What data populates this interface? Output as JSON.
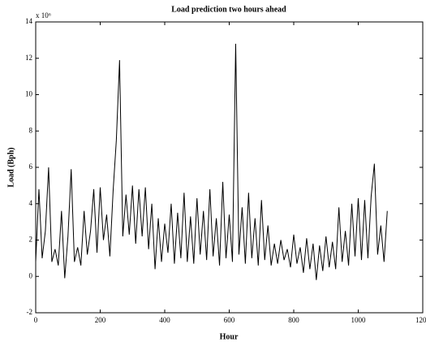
{
  "chart_data": {
    "type": "line",
    "title": "Load prediction two hours ahead",
    "xlabel": "Hour",
    "ylabel": "Load (Bph)",
    "y_multiplier": "x 10⁶",
    "xlim": [
      0,
      1200
    ],
    "xticks": [
      0,
      200,
      400,
      600,
      800,
      1000,
      1200
    ],
    "ylim": [
      -2,
      14
    ],
    "yticks": [
      -2,
      0,
      2,
      4,
      6,
      8,
      10,
      12,
      14
    ],
    "grid": false,
    "series": [
      {
        "color": "#000000",
        "x": [
          0,
          10,
          20,
          30,
          40,
          50,
          60,
          70,
          80,
          90,
          100,
          110,
          120,
          130,
          140,
          150,
          160,
          170,
          180,
          190,
          200,
          210,
          220,
          230,
          240,
          250,
          260,
          270,
          280,
          290,
          300,
          310,
          320,
          330,
          340,
          350,
          360,
          370,
          380,
          390,
          400,
          410,
          420,
          430,
          440,
          450,
          460,
          470,
          480,
          490,
          500,
          510,
          520,
          530,
          540,
          550,
          560,
          570,
          580,
          590,
          600,
          610,
          620,
          630,
          640,
          650,
          660,
          670,
          680,
          690,
          700,
          710,
          720,
          730,
          740,
          750,
          760,
          770,
          780,
          790,
          800,
          810,
          820,
          830,
          840,
          850,
          860,
          870,
          880,
          890,
          900,
          910,
          920,
          930,
          940,
          950,
          960,
          970,
          980,
          990,
          1000,
          1010,
          1020,
          1030,
          1040,
          1050,
          1060,
          1070,
          1080,
          1090
        ],
        "values": [
          0.8,
          4.8,
          1.0,
          2.5,
          6.0,
          0.8,
          1.5,
          0.6,
          3.6,
          -0.1,
          2.2,
          5.9,
          0.8,
          1.6,
          0.6,
          3.6,
          1.2,
          2.5,
          4.8,
          1.3,
          4.9,
          2.0,
          3.4,
          1.1,
          4.7,
          7.5,
          11.9,
          2.2,
          4.5,
          2.3,
          5.0,
          1.8,
          4.8,
          2.2,
          4.9,
          1.5,
          4.0,
          0.4,
          3.2,
          0.8,
          2.9,
          1.3,
          4.0,
          0.7,
          3.5,
          1.0,
          4.6,
          0.8,
          3.3,
          0.7,
          4.3,
          1.2,
          3.6,
          0.9,
          4.8,
          1.1,
          3.2,
          0.6,
          5.2,
          1.0,
          3.4,
          0.8,
          12.8,
          1.2,
          3.8,
          0.7,
          4.6,
          1.0,
          3.2,
          0.6,
          4.2,
          0.9,
          2.8,
          0.6,
          1.8,
          0.7,
          2.0,
          0.9,
          1.5,
          0.5,
          2.3,
          0.7,
          1.6,
          0.2,
          2.1,
          0.4,
          1.8,
          -0.2,
          1.7,
          0.3,
          2.2,
          0.5,
          1.9,
          0.4,
          3.8,
          0.8,
          2.5,
          0.6,
          4.0,
          1.1,
          4.3,
          0.9,
          4.2,
          1.0,
          4.4,
          6.2,
          1.2,
          2.8,
          0.8,
          3.6
        ]
      }
    ]
  }
}
